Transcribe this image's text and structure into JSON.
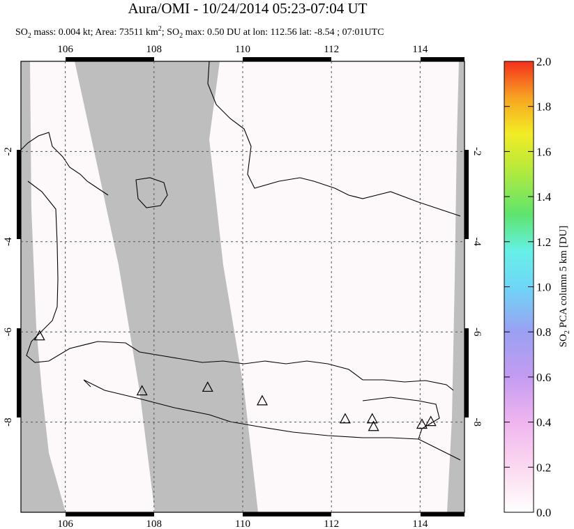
{
  "title": "Aura/OMI - 10/24/2014 05:23-07:04 UT",
  "subtitle": [
    "SO",
    "2",
    " mass: 0.004 kt; Area: 73511 km",
    "2",
    "; SO",
    "2",
    " max: 0.50 DU at lon: 112.56 lat: -8.54 ; 07:01UTC"
  ],
  "map": {
    "xlim": [
      105,
      115
    ],
    "ylim": [
      -10,
      0
    ],
    "xticks": [
      106,
      108,
      110,
      112,
      114
    ],
    "yticks": [
      -2,
      -4,
      -6,
      -8
    ],
    "volcanoes": {
      "lon": [
        105.42,
        107.73,
        109.21,
        110.44,
        112.31,
        112.92,
        112.95,
        114.04,
        114.24
      ],
      "lat": [
        -6.1,
        -7.32,
        -7.24,
        -7.54,
        -7.94,
        -7.94,
        -8.11,
        -8.06,
        -8.0
      ]
    }
  },
  "colorbar": {
    "label": [
      "SO",
      "2",
      " PCA column 5 km [DU]"
    ],
    "lim": [
      0,
      2
    ],
    "ticks": [
      {
        "value": 0,
        "label": "0.0"
      },
      0.2,
      0.4,
      0.6,
      0.8,
      {
        "value": 1,
        "label": "1.0"
      },
      1.2,
      1.4,
      1.6,
      1.8,
      {
        "value": 2,
        "label": "2.0"
      }
    ]
  }
}
